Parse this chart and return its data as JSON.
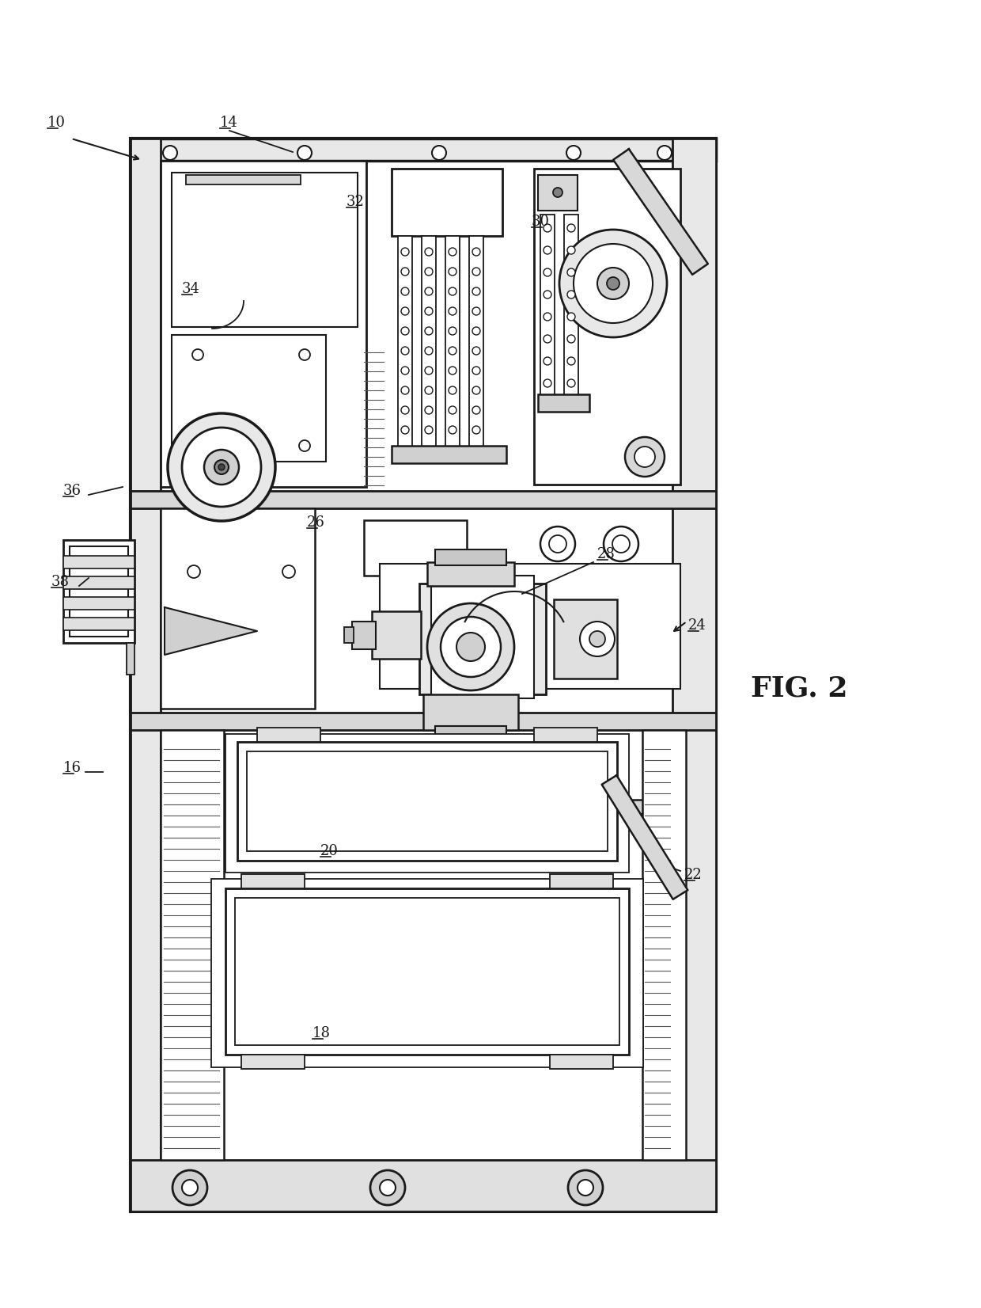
{
  "bg": "#ffffff",
  "lc": "#1a1a1a",
  "lw": 1.8,
  "fig_label": "FIG. 2",
  "labels": [
    "10",
    "14",
    "16",
    "18",
    "20",
    "22",
    "24",
    "26",
    "28",
    "30",
    "32",
    "34",
    "36",
    "38"
  ]
}
